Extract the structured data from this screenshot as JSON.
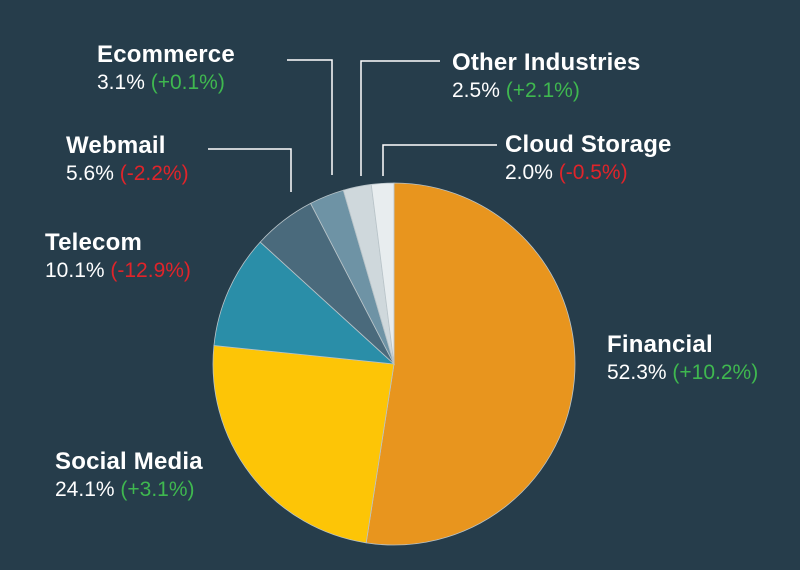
{
  "chart_data": {
    "type": "pie",
    "title": "",
    "start": "top-clockwise",
    "slices": [
      {
        "name": "Financial",
        "value": 52.3,
        "percent_label": "52.3%",
        "change_label": "(+10.2%)",
        "change_sign": "positive",
        "color": "#e8951e"
      },
      {
        "name": "Social Media",
        "value": 24.1,
        "percent_label": "24.1%",
        "change_label": "(+3.1%)",
        "change_sign": "positive",
        "color": "#fdc506"
      },
      {
        "name": "Telecom",
        "value": 10.1,
        "percent_label": "10.1%",
        "change_label": "(-12.9%)",
        "change_sign": "negative",
        "color": "#2a8ea8"
      },
      {
        "name": "Webmail",
        "value": 5.6,
        "percent_label": "5.6%",
        "change_label": "(-2.2%)",
        "change_sign": "negative",
        "color": "#4a6a7c"
      },
      {
        "name": "Ecommerce",
        "value": 3.1,
        "percent_label": "3.1%",
        "change_label": "(+0.1%)",
        "change_sign": "positive",
        "color": "#6e93a5"
      },
      {
        "name": "Other Industries",
        "value": 2.5,
        "percent_label": "2.5%",
        "change_label": "(+2.1%)",
        "change_sign": "positive",
        "color": "#cfd8dc"
      },
      {
        "name": "Cloud Storage",
        "value": 2.0,
        "percent_label": "2.0%",
        "change_label": "(-0.5%)",
        "change_sign": "negative",
        "color": "#e8edef"
      }
    ]
  },
  "colors": {
    "background": "#263d4b",
    "leader_line": "#ffffff",
    "positive_change": "#3fb84f",
    "negative_change": "#e0242a"
  }
}
